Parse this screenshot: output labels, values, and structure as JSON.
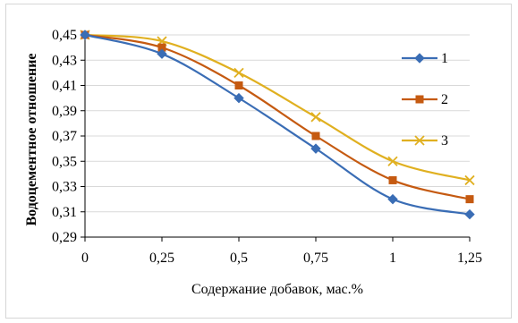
{
  "chart_data": {
    "type": "line",
    "xlabel": "Содержание добавок, мас.%",
    "ylabel": "Водоцементное отношение",
    "x": [
      0,
      0.25,
      0.5,
      0.75,
      1,
      1.25
    ],
    "x_tick_labels": [
      "0",
      "0,25",
      "0,5",
      "0,75",
      "1",
      "1,25"
    ],
    "y_tick_labels": [
      "0,29",
      "0,31",
      "0,33",
      "0,35",
      "0,37",
      "0,39",
      "0,41",
      "0,43",
      "0,45"
    ],
    "y_ticks": [
      0.29,
      0.31,
      0.33,
      0.35,
      0.37,
      0.39,
      0.41,
      0.43,
      0.45
    ],
    "ylim": [
      0.29,
      0.45
    ],
    "xlim": [
      0,
      1.25
    ],
    "grid": "horizontal",
    "legend": "right",
    "smooth": true,
    "series": [
      {
        "name": "1",
        "color": "#3a6db5",
        "marker": "diamond",
        "values": [
          0.45,
          0.435,
          0.4,
          0.36,
          0.32,
          0.308
        ]
      },
      {
        "name": "2",
        "color": "#c55a11",
        "marker": "square",
        "values": [
          0.45,
          0.44,
          0.41,
          0.37,
          0.335,
          0.32
        ]
      },
      {
        "name": "3",
        "color": "#e0b020",
        "marker": "x",
        "values": [
          0.45,
          0.445,
          0.42,
          0.385,
          0.35,
          0.335
        ]
      }
    ]
  }
}
